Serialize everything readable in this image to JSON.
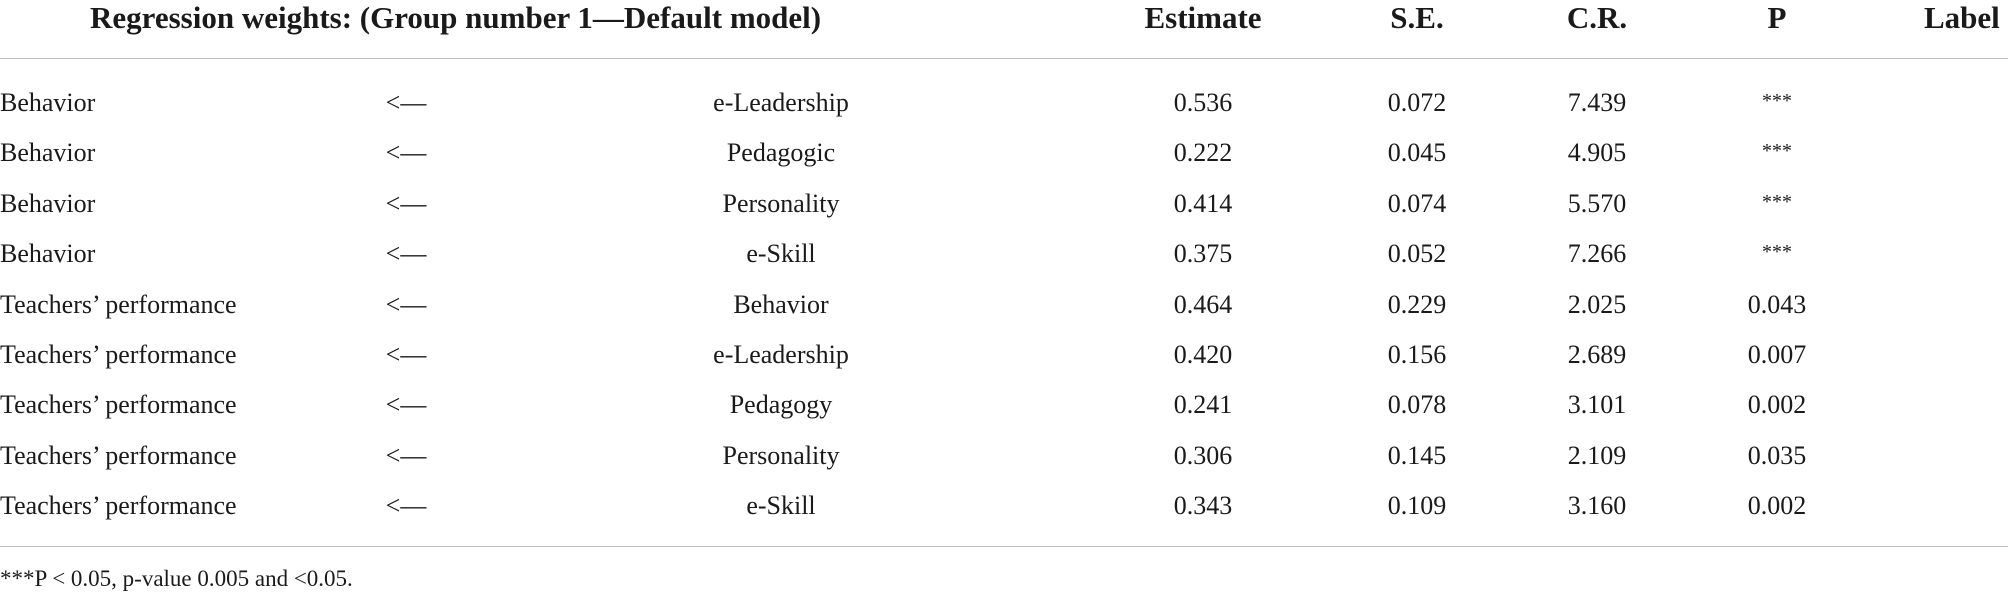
{
  "header": {
    "title": "Regression weights: (Group number 1—Default model)",
    "estimate": "Estimate",
    "se": "S.E.",
    "cr": "C.R.",
    "p": "P",
    "label": "Label"
  },
  "rows": [
    {
      "dependent": "Behavior",
      "arrow": "<—",
      "predictor": "e-Leadership",
      "estimate": "0.536",
      "se": "0.072",
      "cr": "7.439",
      "p": "***"
    },
    {
      "dependent": "Behavior",
      "arrow": "<—",
      "predictor": "Pedagogic",
      "estimate": "0.222",
      "se": "0.045",
      "cr": "4.905",
      "p": "***"
    },
    {
      "dependent": "Behavior",
      "arrow": "<—",
      "predictor": "Personality",
      "estimate": "0.414",
      "se": "0.074",
      "cr": "5.570",
      "p": "***"
    },
    {
      "dependent": "Behavior",
      "arrow": "<—",
      "predictor": "e-Skill",
      "estimate": "0.375",
      "se": "0.052",
      "cr": "7.266",
      "p": "***"
    },
    {
      "dependent": "Teachers’ performance",
      "arrow": "<—",
      "predictor": "Behavior",
      "estimate": "0.464",
      "se": "0.229",
      "cr": "2.025",
      "p": "0.043"
    },
    {
      "dependent": "Teachers’ performance",
      "arrow": "<—",
      "predictor": "e-Leadership",
      "estimate": "0.420",
      "se": "0.156",
      "cr": "2.689",
      "p": "0.007"
    },
    {
      "dependent": "Teachers’ performance",
      "arrow": "<—",
      "predictor": "Pedagogy",
      "estimate": "0.241",
      "se": "0.078",
      "cr": "3.101",
      "p": "0.002"
    },
    {
      "dependent": "Teachers’ performance",
      "arrow": "<—",
      "predictor": "Personality",
      "estimate": "0.306",
      "se": "0.145",
      "cr": "2.109",
      "p": "0.035"
    },
    {
      "dependent": "Teachers’ performance",
      "arrow": "<—",
      "predictor": "e-Skill",
      "estimate": "0.343",
      "se": "0.109",
      "cr": "3.160",
      "p": "0.002"
    }
  ],
  "footnote": "***P < 0.05, p-value 0.005 and <0.05."
}
